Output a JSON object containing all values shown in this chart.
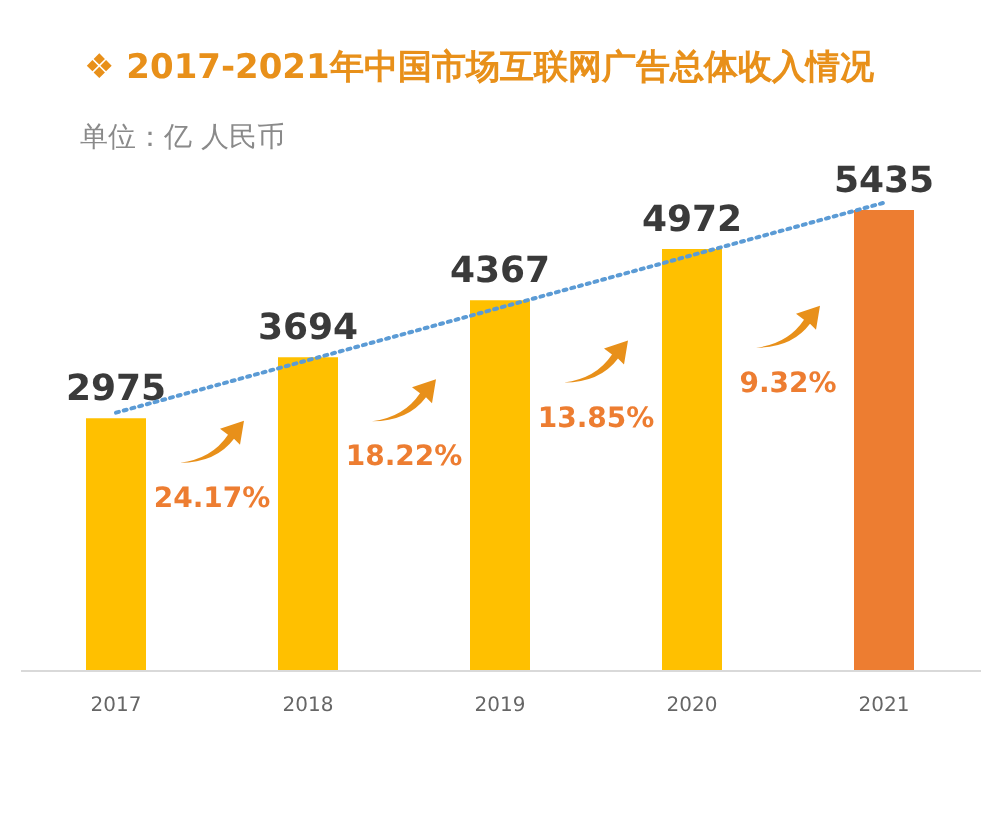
{
  "chart_data": {
    "type": "bar",
    "title": "❖  2017-2021年中国市场互联网广告总体收入情况",
    "subtitle": "单位：亿 人民币",
    "categories": [
      "2017",
      "2018",
      "2019",
      "2020",
      "2021"
    ],
    "series": [
      {
        "values": [
          2975,
          3694,
          4367,
          4972,
          5435
        ],
        "colors": [
          "#ffc000",
          "#ffc000",
          "#ffc000",
          "#ffc000",
          "#ed7d31"
        ],
        "value_labels": [
          "2975",
          "3694",
          "4367",
          "4972",
          "5435"
        ]
      },
      {
        "type": "line",
        "values": [
          3040,
          3660,
          4280,
          4900,
          5520
        ],
        "color": "#5b9bd5",
        "line_style": "dotted",
        "marker": "none"
      }
    ],
    "annotations": [
      "24.17%",
      "18.22%",
      "13.85%",
      "9.32%"
    ],
    "grid": false,
    "legend": false
  }
}
